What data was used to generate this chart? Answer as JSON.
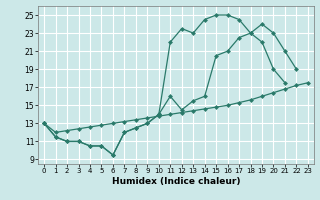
{
  "xlabel": "Humidex (Indice chaleur)",
  "bg_color": "#cce8e8",
  "grid_color": "#ffffff",
  "line_color": "#2a7a6a",
  "xlim": [
    -0.5,
    23.5
  ],
  "ylim": [
    8.5,
    26.0
  ],
  "yticks": [
    9,
    11,
    13,
    15,
    17,
    19,
    21,
    23,
    25
  ],
  "xticks": [
    0,
    1,
    2,
    3,
    4,
    5,
    6,
    7,
    8,
    9,
    10,
    11,
    12,
    13,
    14,
    15,
    16,
    17,
    18,
    19,
    20,
    21,
    22,
    23
  ],
  "line1_x": [
    0,
    1,
    2,
    3,
    4,
    5,
    6,
    7,
    8,
    9,
    10,
    11,
    12,
    13,
    14,
    15,
    16,
    17,
    18,
    19,
    20,
    21
  ],
  "line1_y": [
    13,
    11.5,
    11,
    11,
    10.5,
    10.5,
    9.5,
    12,
    12.5,
    13,
    14,
    16,
    14.5,
    15.5,
    16,
    20.5,
    21,
    22.5,
    23,
    22,
    19,
    17.5
  ],
  "line2_x": [
    0,
    1,
    2,
    3,
    4,
    5,
    6,
    7,
    8,
    9,
    10,
    11,
    12,
    13,
    14,
    15,
    16,
    17,
    18,
    19,
    20,
    21,
    22
  ],
  "line2_y": [
    13,
    11.5,
    11,
    11,
    10.5,
    10.5,
    9.5,
    12,
    12.5,
    13,
    14,
    22,
    23.5,
    23,
    24.5,
    25,
    25,
    24.5,
    23,
    24,
    23,
    21,
    19
  ],
  "line3_x": [
    0,
    1,
    2,
    3,
    4,
    5,
    6,
    7,
    8,
    9,
    10,
    11,
    12,
    13,
    14,
    15,
    16,
    17,
    18,
    19,
    20,
    21,
    22,
    23
  ],
  "line3_y": [
    13,
    12.0,
    12.2,
    12.4,
    12.6,
    12.8,
    13.0,
    13.2,
    13.4,
    13.6,
    13.8,
    14.0,
    14.2,
    14.4,
    14.6,
    14.8,
    15.0,
    15.3,
    15.6,
    16.0,
    16.4,
    16.8,
    17.2,
    17.5
  ],
  "markersize": 2.5
}
